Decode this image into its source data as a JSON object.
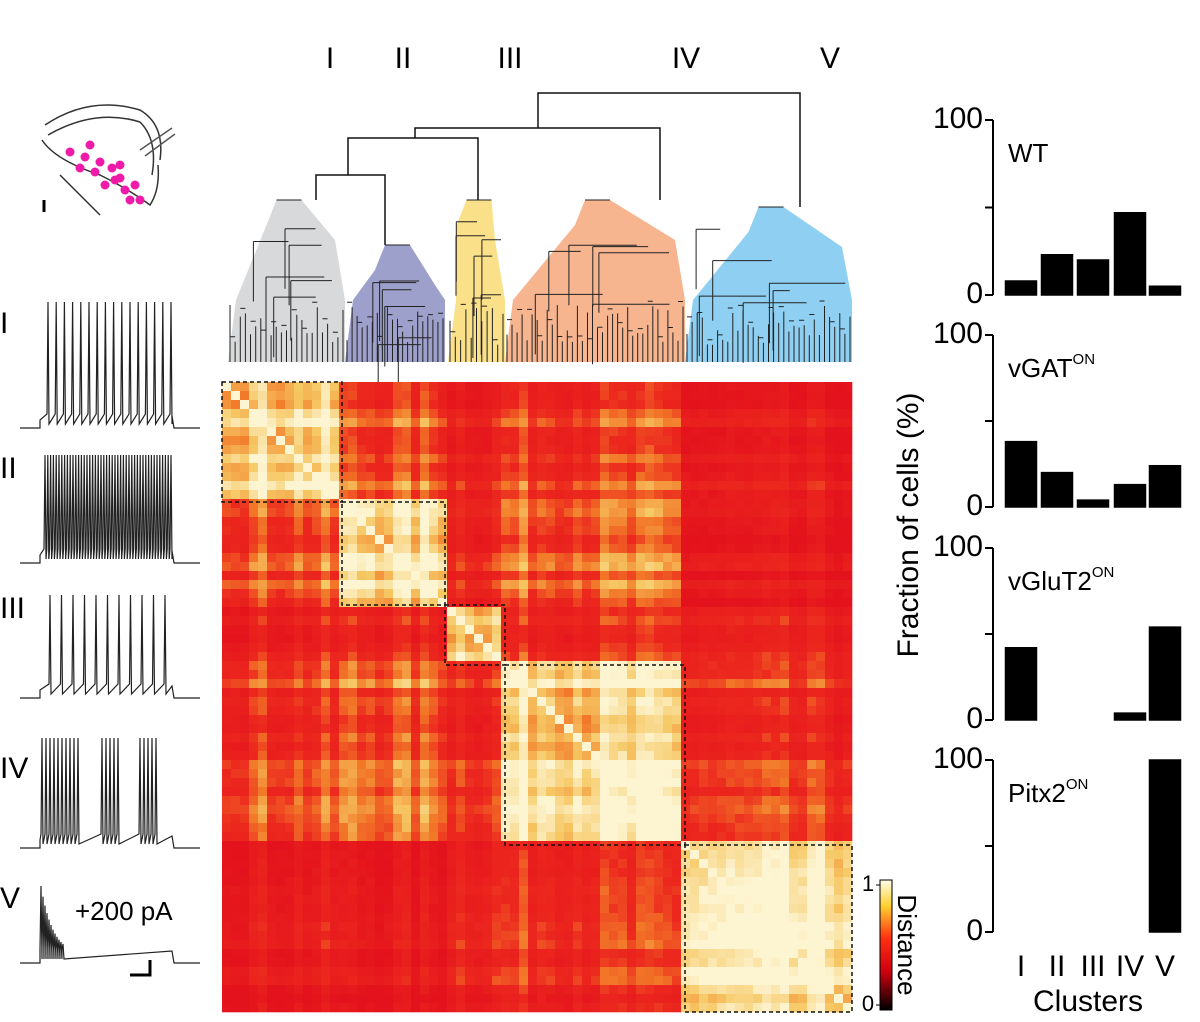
{
  "dendrogram": {
    "cluster_labels": [
      "I",
      "II",
      "III",
      "IV",
      "V"
    ]
  },
  "traces": {
    "labels": [
      "I",
      "II",
      "III",
      "IV",
      "V"
    ],
    "stimulus": "+200 pA"
  },
  "heatmap": {
    "colorbar_label": "Distance",
    "colorbar_ticks": [
      0,
      1
    ]
  },
  "shared_axes": {
    "ylabel": "Fraction of cells (%)",
    "xlabel": "Clusters",
    "categories": [
      "I",
      "II",
      "III",
      "IV",
      "V"
    ]
  },
  "chart_data": [
    {
      "type": "bar",
      "title": "WT",
      "values": [
        8,
        23,
        20,
        47,
        5
      ],
      "color": "#000000",
      "ylim": [
        0,
        100
      ],
      "yticks": [
        0,
        100
      ],
      "minor_yticks": [
        50
      ]
    },
    {
      "type": "bar",
      "title": "vGAT",
      "title_sup": "ON",
      "values": [
        38,
        20,
        4,
        13,
        24
      ],
      "color": "#000000",
      "ylim": [
        0,
        100
      ],
      "yticks": [
        0,
        100
      ],
      "minor_yticks": [
        50
      ]
    },
    {
      "type": "bar",
      "title": "vGluT2",
      "title_sup": "ON",
      "values": [
        42,
        0,
        0,
        4,
        54
      ],
      "color": "#000000",
      "ylim": [
        0,
        100
      ],
      "yticks": [
        0,
        100
      ],
      "minor_yticks": [
        50
      ]
    },
    {
      "type": "bar",
      "title": "Pitx2",
      "title_sup": "ON",
      "values": [
        0,
        0,
        0,
        0,
        100
      ],
      "color": "#000000",
      "ylim": [
        0,
        100
      ],
      "yticks": [
        0,
        100
      ],
      "minor_yticks": [
        50
      ]
    }
  ]
}
